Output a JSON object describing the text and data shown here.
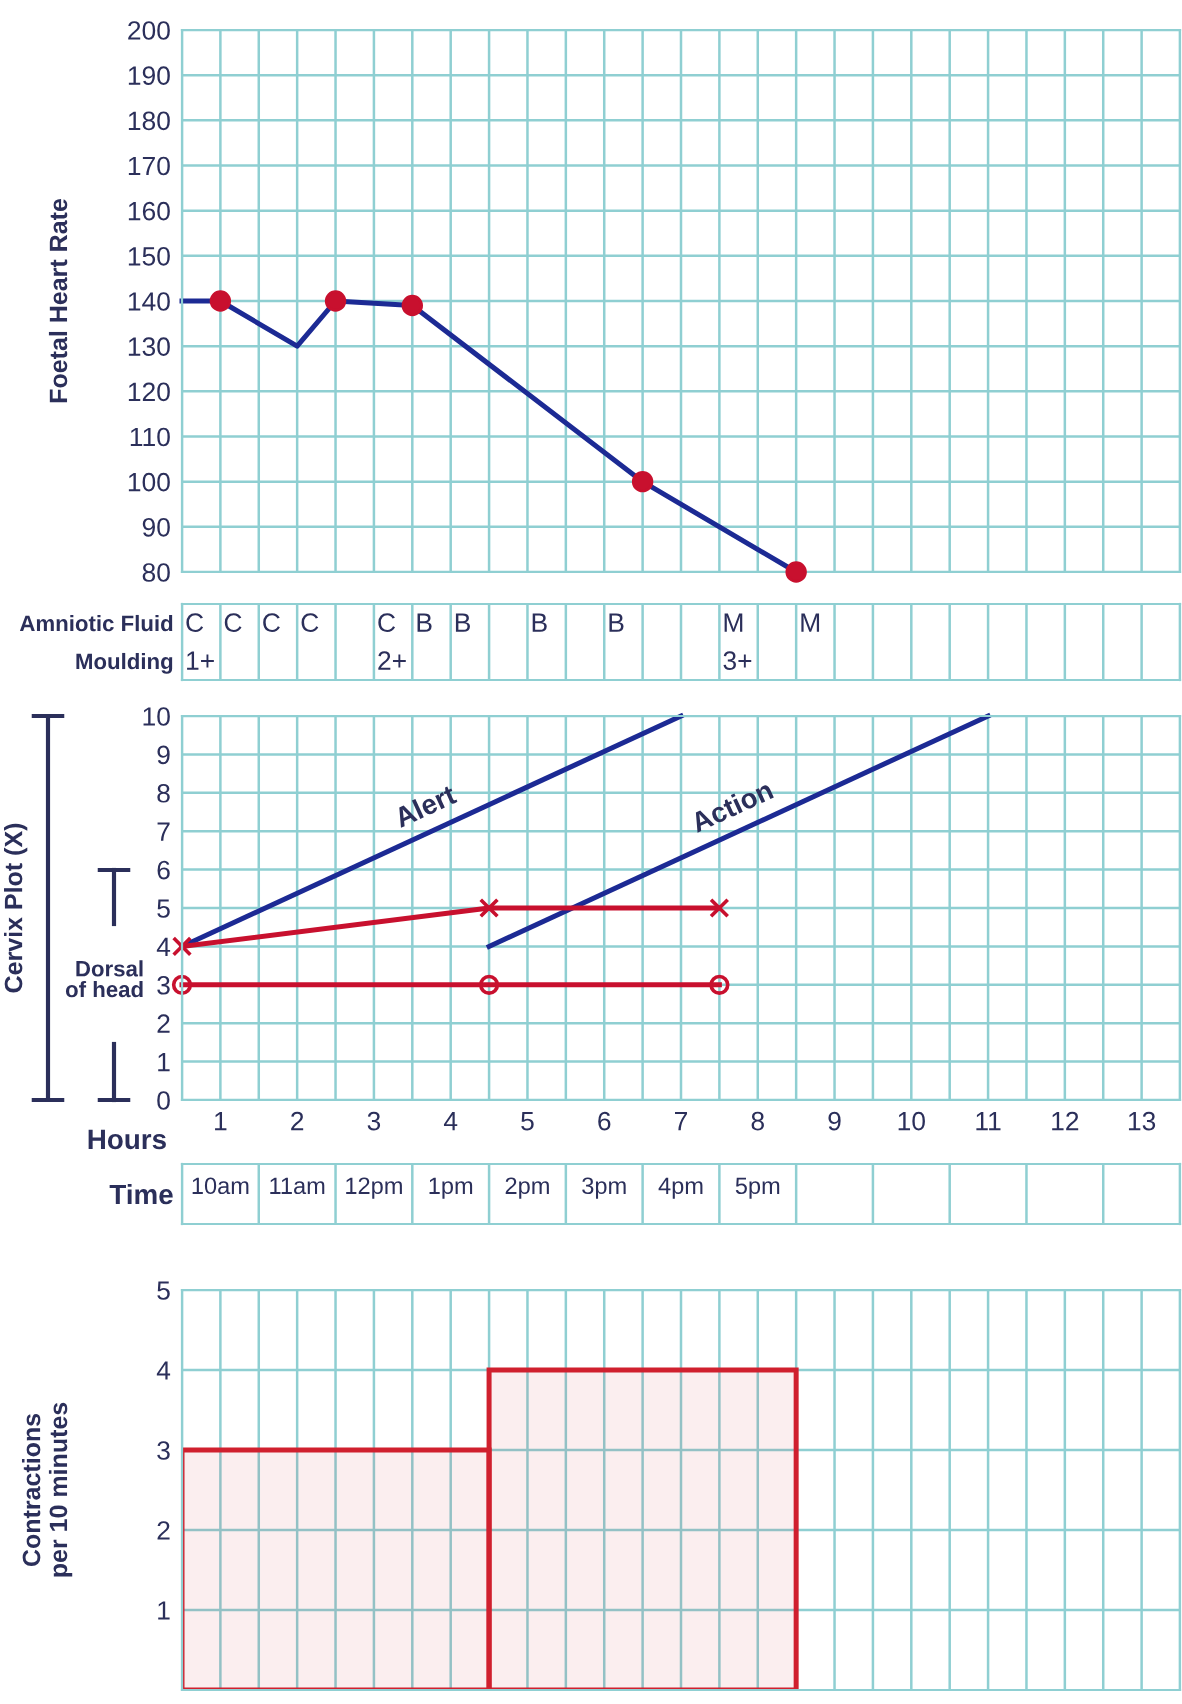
{
  "chart_data": [
    {
      "type": "line",
      "ylabel": "Foetal Heart Rate",
      "xlim": [
        0,
        13
      ],
      "xticks": [
        {
          "value": 0,
          "label": null
        },
        {
          "value": 0.5,
          "label": null
        },
        {
          "value": 1,
          "label": null
        },
        {
          "value": 1.5,
          "label": null
        },
        {
          "value": 2,
          "label": null
        },
        {
          "value": 2.5,
          "label": null
        },
        {
          "value": 3,
          "label": null
        },
        {
          "value": 3.5,
          "label": null
        },
        {
          "value": 4,
          "label": null
        },
        {
          "value": 4.5,
          "label": null
        },
        {
          "value": 5,
          "label": null
        },
        {
          "value": 5.5,
          "label": null
        },
        {
          "value": 6,
          "label": null
        },
        {
          "value": 6.5,
          "label": null
        },
        {
          "value": 7,
          "label": null
        },
        {
          "value": 7.5,
          "label": null
        },
        {
          "value": 8,
          "label": null
        },
        {
          "value": 8.5,
          "label": null
        },
        {
          "value": 9,
          "label": null
        },
        {
          "value": 9.5,
          "label": null
        },
        {
          "value": 10,
          "label": null
        },
        {
          "value": 10.5,
          "label": null
        },
        {
          "value": 11,
          "label": null
        },
        {
          "value": 11.5,
          "label": null
        },
        {
          "value": 12,
          "label": null
        },
        {
          "value": 12.5,
          "label": null
        },
        {
          "value": 13,
          "label": null
        }
      ],
      "ylim": [
        80,
        200
      ],
      "yticks": [
        80,
        90,
        100,
        110,
        120,
        130,
        140,
        150,
        160,
        170,
        180,
        190,
        200
      ],
      "grid": true,
      "tick_labels": "y",
      "series": [
        {
          "color": "#1c2a94",
          "x": [
            0,
            0.5,
            1.5,
            2,
            3,
            6,
            8
          ],
          "values": [
            140,
            140,
            130,
            140,
            139,
            100,
            80
          ]
        },
        {
          "type": "scatter",
          "color": "#c8102e",
          "marker": "circle",
          "x": [
            0.5,
            2,
            3,
            6,
            8
          ],
          "values": [
            140,
            140,
            139,
            100,
            80
          ]
        }
      ]
    },
    {
      "type": "heatmap",
      "grid": "x",
      "categories": [
        null,
        null,
        null,
        null,
        null,
        null,
        null,
        null,
        null,
        null,
        null,
        null,
        null,
        null,
        null,
        null,
        null,
        null,
        null,
        null,
        null,
        null,
        null,
        null,
        null,
        null
      ],
      "y_categories": [
        "Amniotic Fluid",
        "Moulding"
      ],
      "cells": [
        [
          null,
          null,
          null,
          null,
          null,
          null,
          null,
          null,
          null,
          null,
          null,
          null,
          null,
          null,
          null,
          null,
          null,
          null,
          null,
          null,
          null,
          null,
          null,
          null,
          null,
          null
        ],
        [
          null,
          null,
          null,
          null,
          null,
          null,
          null,
          null,
          null,
          null,
          null,
          null,
          null,
          null,
          null,
          null,
          null,
          null,
          null,
          null,
          null,
          null,
          null,
          null,
          null,
          null
        ]
      ],
      "cell_labels": [
        [
          "C",
          "C",
          "C",
          "C",
          null,
          "C",
          "B",
          "B",
          null,
          "B",
          null,
          "B",
          null,
          null,
          "M",
          null,
          "M",
          null,
          null,
          null,
          null,
          null,
          null,
          null,
          null,
          null
        ],
        [
          "1+",
          null,
          null,
          null,
          null,
          "2+",
          null,
          null,
          null,
          null,
          null,
          null,
          null,
          null,
          "3+",
          null,
          null,
          null,
          null,
          null,
          null,
          null,
          null,
          null,
          null,
          null
        ]
      ]
    },
    {
      "type": "line",
      "ylabel": "Cervix Plot (X)",
      "xlabel": "Hours",
      "xlim": [
        0,
        13
      ],
      "xticks": [
        {
          "value": 0,
          "label": null
        },
        {
          "value": 0.5,
          "label": "1"
        },
        {
          "value": 1,
          "label": null
        },
        {
          "value": 1.5,
          "label": "2"
        },
        {
          "value": 2,
          "label": null
        },
        {
          "value": 2.5,
          "label": "3"
        },
        {
          "value": 3,
          "label": null
        },
        {
          "value": 3.5,
          "label": "4"
        },
        {
          "value": 4,
          "label": null
        },
        {
          "value": 4.5,
          "label": "5"
        },
        {
          "value": 5,
          "label": null
        },
        {
          "value": 5.5,
          "label": "6"
        },
        {
          "value": 6,
          "label": null
        },
        {
          "value": 6.5,
          "label": "7"
        },
        {
          "value": 7,
          "label": null
        },
        {
          "value": 7.5,
          "label": "8"
        },
        {
          "value": 8,
          "label": null
        },
        {
          "value": 8.5,
          "label": "9"
        },
        {
          "value": 9,
          "label": null
        },
        {
          "value": 9.5,
          "label": "10"
        },
        {
          "value": 10,
          "label": null
        },
        {
          "value": 10.5,
          "label": "11"
        },
        {
          "value": 11,
          "label": null
        },
        {
          "value": 11.5,
          "label": "12"
        },
        {
          "value": 12,
          "label": null
        },
        {
          "value": 12.5,
          "label": "13"
        },
        {
          "value": 13,
          "label": null
        }
      ],
      "ylim": [
        0,
        10
      ],
      "yticks": [
        0,
        1,
        2,
        3,
        4,
        5,
        6,
        7,
        8,
        9,
        10
      ],
      "grid": true,
      "annotations": [
        "Dorsal\nof head"
      ],
      "series": [
        {
          "name": "Alert",
          "color": "#1c2a94",
          "x": [
            0,
            6.5
          ],
          "values": [
            4,
            10
          ]
        },
        {
          "name": "Action",
          "color": "#1c2a94",
          "x": [
            4,
            10.5
          ],
          "values": [
            4,
            10
          ]
        },
        {
          "color": "#c8102e",
          "marker": "cross",
          "x": [
            0,
            4,
            7
          ],
          "values": [
            4,
            5,
            5
          ]
        },
        {
          "color": "#c8102e",
          "marker": "circle",
          "x": [
            0,
            4,
            7
          ],
          "values": [
            3,
            3,
            3
          ]
        }
      ]
    },
    {
      "type": "heatmap",
      "grid": "x",
      "categories": [
        "10am",
        "11am",
        "12pm",
        "1pm",
        "2pm",
        "3pm",
        "4pm",
        "5pm",
        null,
        null,
        null,
        null,
        null
      ],
      "y_categories": [
        "Time"
      ],
      "cells": [
        [
          null,
          null,
          null,
          null,
          null,
          null,
          null,
          null,
          null,
          null,
          null,
          null,
          null
        ]
      ]
    },
    {
      "type": "bar",
      "ylabel": "Contractions\nper 10 minutes",
      "xlim": [
        0,
        13
      ],
      "xticks": [
        {
          "value": 0,
          "label": null
        },
        {
          "value": 0.5,
          "label": null
        },
        {
          "value": 1,
          "label": null
        },
        {
          "value": 1.5,
          "label": null
        },
        {
          "value": 2,
          "label": null
        },
        {
          "value": 2.5,
          "label": null
        },
        {
          "value": 3,
          "label": null
        },
        {
          "value": 3.5,
          "label": null
        },
        {
          "value": 4,
          "label": null
        },
        {
          "value": 4.5,
          "label": null
        },
        {
          "value": 5,
          "label": null
        },
        {
          "value": 5.5,
          "label": null
        },
        {
          "value": 6,
          "label": null
        },
        {
          "value": 6.5,
          "label": null
        },
        {
          "value": 7,
          "label": null
        },
        {
          "value": 7.5,
          "label": null
        },
        {
          "value": 8,
          "label": null
        },
        {
          "value": 8.5,
          "label": null
        },
        {
          "value": 9,
          "label": null
        },
        {
          "value": 9.5,
          "label": null
        },
        {
          "value": 10,
          "label": null
        },
        {
          "value": 10.5,
          "label": null
        },
        {
          "value": 11,
          "label": null
        },
        {
          "value": 11.5,
          "label": null
        },
        {
          "value": 12,
          "label": null
        },
        {
          "value": 12.5,
          "label": null
        },
        {
          "value": 13,
          "label": null
        }
      ],
      "ylim": [
        0,
        5
      ],
      "yticks": [
        1,
        2,
        3,
        4,
        5
      ],
      "grid": true,
      "tick_labels": "y",
      "series": [
        {
          "color": "#d0202e",
          "x": [
            2,
            6
          ],
          "values": [
            3,
            4
          ]
        }
      ]
    }
  ]
}
